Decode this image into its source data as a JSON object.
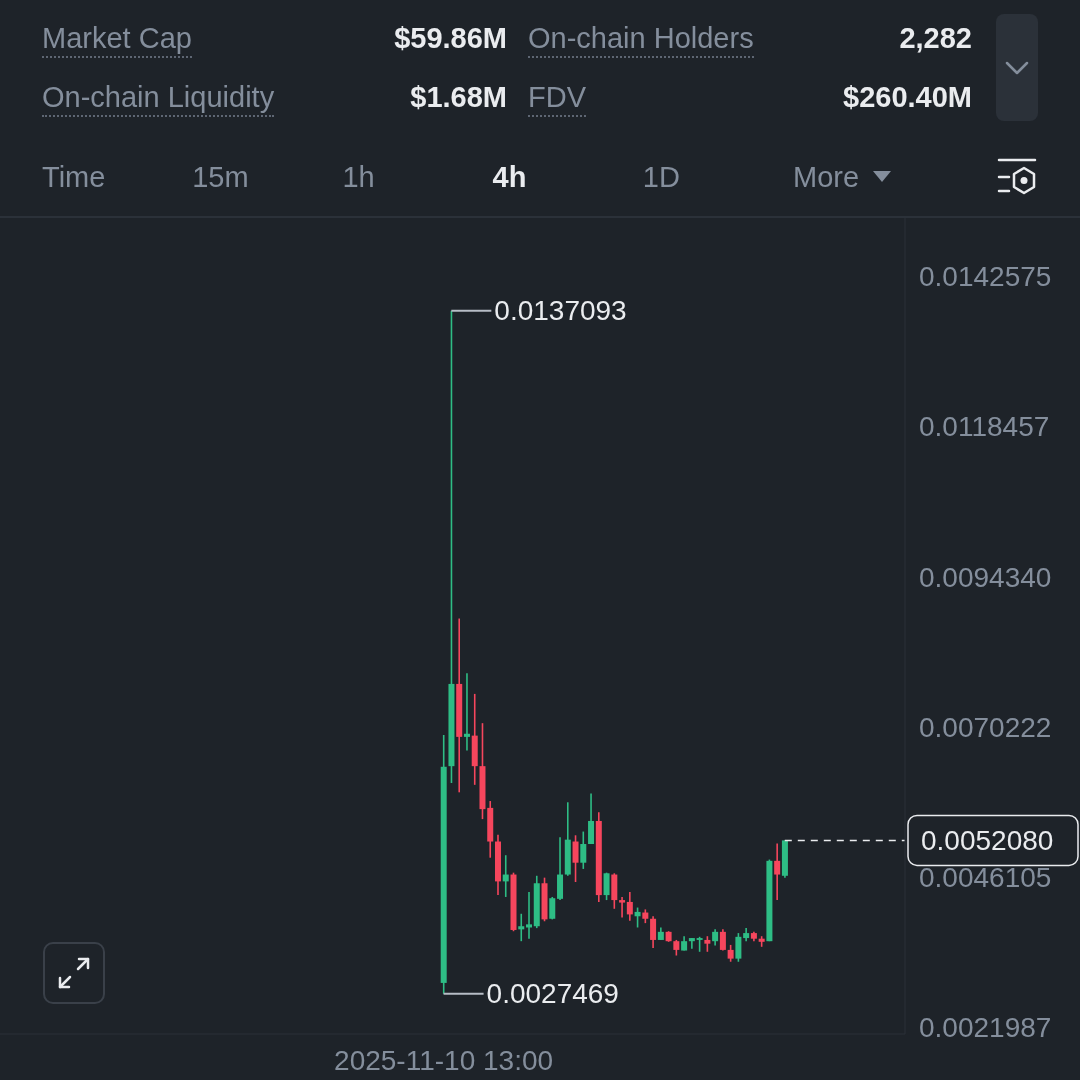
{
  "chart_data": [
    {
      "type": "other",
      "categories": [
        "Market Cap",
        "On-chain Holders",
        "On-chain Liquidity",
        "FDV"
      ],
      "value_labels": [
        "$59.86M",
        "2,282",
        "$1.68M",
        "$260.40M"
      ],
      "annotations": [
        "Time",
        "15m",
        "1h",
        "4h",
        "1D",
        "More"
      ]
    },
    {
      "type": "candlestick",
      "categories": [
        "2025-11-10 13:00",
        null,
        null,
        null,
        null,
        null,
        null,
        null,
        null,
        null,
        null,
        null,
        null,
        null,
        null,
        null,
        null,
        null,
        null,
        null,
        null,
        null,
        null,
        null,
        null,
        null,
        null,
        null,
        null,
        null,
        null,
        null,
        null,
        null,
        null,
        null,
        null,
        null,
        null,
        null,
        null,
        null,
        null,
        null,
        null
      ],
      "ohlc": [
        [
          0.00292,
          0.0069,
          0.0027469,
          0.00639
        ],
        [
          0.0064,
          0.0137093,
          0.00613,
          0.00772
        ],
        [
          0.00772,
          0.00877,
          0.00598,
          0.00687
        ],
        [
          0.00687,
          0.00789,
          0.00665,
          0.00692
        ],
        [
          0.00689,
          0.00756,
          0.0061,
          0.0064
        ],
        [
          0.0064,
          0.00709,
          0.00555,
          0.00571
        ],
        [
          0.00573,
          0.00584,
          0.00493,
          0.00519
        ],
        [
          0.00519,
          0.0053,
          0.00433,
          0.00455
        ],
        [
          0.00455,
          0.00497,
          0.0043,
          0.00466
        ],
        [
          0.00466,
          0.00469,
          0.00375,
          0.00377
        ],
        [
          0.00378,
          0.00403,
          0.00359,
          0.00383
        ],
        [
          0.00381,
          0.00438,
          0.00363,
          0.00386
        ],
        [
          0.00383,
          0.00464,
          0.0038,
          0.00452
        ],
        [
          0.00452,
          0.00461,
          0.00391,
          0.00394
        ],
        [
          0.00395,
          0.0043,
          0.00394,
          0.00428
        ],
        [
          0.00427,
          0.00526,
          0.00425,
          0.00466
        ],
        [
          0.00466,
          0.00582,
          0.00464,
          0.00522
        ],
        [
          0.00519,
          0.00529,
          0.00454,
          0.00485
        ],
        [
          0.00485,
          0.00535,
          0.00475,
          0.00515
        ],
        [
          0.00515,
          0.00596,
          0.00515,
          0.00552
        ],
        [
          0.00552,
          0.00566,
          0.00422,
          0.00433
        ],
        [
          0.00433,
          0.00469,
          0.00425,
          0.00468
        ],
        [
          0.00466,
          0.00468,
          0.00411,
          0.00425
        ],
        [
          0.00425,
          0.0043,
          0.00397,
          0.00421
        ],
        [
          0.00422,
          0.00438,
          0.00392,
          0.00402
        ],
        [
          0.00399,
          0.00413,
          0.00381,
          0.00406
        ],
        [
          0.00405,
          0.0041,
          0.00388,
          0.00395
        ],
        [
          0.00395,
          0.00399,
          0.00348,
          0.00361
        ],
        [
          0.00361,
          0.00381,
          0.00361,
          0.00374
        ],
        [
          0.00374,
          0.00375,
          0.00358,
          0.00359
        ],
        [
          0.00359,
          0.00361,
          0.00336,
          0.00345
        ],
        [
          0.00344,
          0.00367,
          0.00344,
          0.00359
        ],
        [
          0.00359,
          0.00364,
          0.00347,
          0.00364
        ],
        [
          0.00361,
          0.00366,
          0.00342,
          0.00364
        ],
        [
          0.00361,
          0.00367,
          0.00342,
          0.00355
        ],
        [
          0.00359,
          0.00378,
          0.00352,
          0.00374
        ],
        [
          0.00374,
          0.00378,
          0.00344,
          0.00345
        ],
        [
          0.00345,
          0.00353,
          0.00326,
          0.00331
        ],
        [
          0.00331,
          0.00372,
          0.00326,
          0.00366
        ],
        [
          0.00364,
          0.0038,
          0.00359,
          0.00372
        ],
        [
          0.00372,
          0.00374,
          0.00359,
          0.00363
        ],
        [
          0.00363,
          0.00367,
          0.0035,
          0.00358
        ],
        [
          0.00359,
          0.0049,
          0.00359,
          0.00488
        ],
        [
          0.00488,
          0.00516,
          0.00425,
          0.00466
        ],
        [
          0.00464,
          0.005208,
          0.00461,
          0.005208
        ]
      ],
      "colors": [
        "#2ebd85",
        "#2ebd85",
        "#f6465d",
        "#2ebd85",
        "#f6465d",
        "#f6465d",
        "#f6465d",
        "#f6465d",
        "#2ebd85",
        "#f6465d",
        "#2ebd85",
        "#2ebd85",
        "#2ebd85",
        "#f6465d",
        "#2ebd85",
        "#2ebd85",
        "#2ebd85",
        "#f6465d",
        "#2ebd85",
        "#2ebd85",
        "#f6465d",
        "#2ebd85",
        "#f6465d",
        "#f6465d",
        "#f6465d",
        "#2ebd85",
        "#f6465d",
        "#f6465d",
        "#2ebd85",
        "#f6465d",
        "#f6465d",
        "#2ebd85",
        "#2ebd85",
        "#2ebd85",
        "#f6465d",
        "#2ebd85",
        "#f6465d",
        "#f6465d",
        "#2ebd85",
        "#2ebd85",
        "#f6465d",
        "#f6465d",
        "#2ebd85",
        "#f6465d",
        "#2ebd85"
      ],
      "ylim": [
        0.0021,
        0.0152
      ],
      "yticks": [
        {
          "value": 0.0021987,
          "label": "0.0021987"
        },
        {
          "value": 0.0046105,
          "label": "0.0046105"
        },
        {
          "value": 0.0070222,
          "label": "0.0070222"
        },
        {
          "value": 0.009434,
          "label": "0.0094340"
        },
        {
          "value": 0.0118457,
          "label": "0.0118457"
        },
        {
          "value": 0.0142575,
          "label": "0.0142575"
        }
      ],
      "annotations": [
        "0.0137093",
        {
          "text": "0.0027469",
          "x": "2025-11-10 13:00",
          "y": 0.0027469
        }
      ],
      "ref_lines": [
        {
          "axis": "y",
          "value": 0.005208,
          "label": "0.0052080",
          "color": "#eaecef",
          "line_style": "dashed"
        }
      ]
    }
  ]
}
